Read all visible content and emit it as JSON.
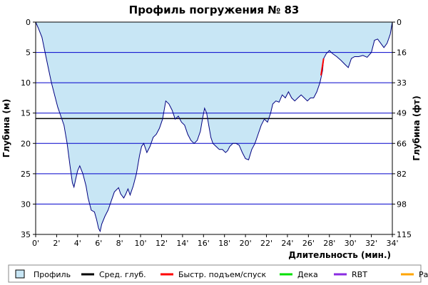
{
  "chart_data": {
    "type": "area",
    "title": "Профиль погружения № 83",
    "xlabel": "Длительность (мин.)",
    "ylabel_left": "Глубина (м)",
    "ylabel_right": "Глубина (фт)",
    "xlim": [
      0,
      34
    ],
    "ylim": [
      0,
      35
    ],
    "y_inverted": true,
    "x_ticks": [
      0,
      2,
      4,
      6,
      8,
      10,
      12,
      14,
      16,
      18,
      20,
      22,
      24,
      26,
      28,
      30,
      32,
      34
    ],
    "x_tick_labels": [
      "0'",
      "2'",
      "4'",
      "6'",
      "8'",
      "10'",
      "12'",
      "14'",
      "16'",
      "18'",
      "20'",
      "22'",
      "24'",
      "26'",
      "28'",
      "30'",
      "32'",
      "34'"
    ],
    "y_ticks": [
      0,
      5,
      10,
      15,
      20,
      25,
      30,
      35
    ],
    "y_tick_labels": [
      "0",
      "5",
      "10",
      "15",
      "20",
      "25",
      "30",
      "35"
    ],
    "y_right_ticks": [
      0,
      5,
      10,
      15,
      20,
      25,
      30,
      35
    ],
    "y_right_tick_labels": [
      "0",
      "16",
      "33",
      "49",
      "66",
      "82",
      "98",
      "115"
    ],
    "grid": "horizontal",
    "avg_depth": 15.9,
    "profile": [
      [
        0,
        0
      ],
      [
        0.25,
        1
      ],
      [
        0.6,
        2.5
      ],
      [
        0.9,
        5
      ],
      [
        1.2,
        7.5
      ],
      [
        1.5,
        10
      ],
      [
        1.8,
        12
      ],
      [
        2.1,
        14
      ],
      [
        2.4,
        15.5
      ],
      [
        2.7,
        17
      ],
      [
        3.0,
        20
      ],
      [
        3.3,
        24
      ],
      [
        3.5,
        26.5
      ],
      [
        3.65,
        27.2
      ],
      [
        3.8,
        26
      ],
      [
        4.0,
        24.5
      ],
      [
        4.2,
        23.7
      ],
      [
        4.5,
        25
      ],
      [
        4.8,
        27
      ],
      [
        5.0,
        29
      ],
      [
        5.3,
        31
      ],
      [
        5.6,
        31.3
      ],
      [
        5.8,
        32.5
      ],
      [
        6.0,
        34
      ],
      [
        6.15,
        34.5
      ],
      [
        6.3,
        33.3
      ],
      [
        6.6,
        32
      ],
      [
        6.9,
        31
      ],
      [
        7.2,
        29.5
      ],
      [
        7.5,
        28
      ],
      [
        7.9,
        27.3
      ],
      [
        8.1,
        28.3
      ],
      [
        8.4,
        29
      ],
      [
        8.6,
        28.3
      ],
      [
        8.8,
        27.5
      ],
      [
        9.0,
        28.5
      ],
      [
        9.3,
        27
      ],
      [
        9.6,
        25
      ],
      [
        9.9,
        22
      ],
      [
        10.1,
        20.5
      ],
      [
        10.3,
        20
      ],
      [
        10.6,
        21.5
      ],
      [
        10.9,
        20.5
      ],
      [
        11.2,
        19
      ],
      [
        11.5,
        18.5
      ],
      [
        11.8,
        17.5
      ],
      [
        12.1,
        16
      ],
      [
        12.4,
        13
      ],
      [
        12.7,
        13.5
      ],
      [
        13.0,
        14.5
      ],
      [
        13.3,
        16
      ],
      [
        13.6,
        15.5
      ],
      [
        13.9,
        16.5
      ],
      [
        14.2,
        17
      ],
      [
        14.5,
        18.5
      ],
      [
        14.8,
        19.5
      ],
      [
        15.1,
        20
      ],
      [
        15.4,
        19.5
      ],
      [
        15.7,
        18
      ],
      [
        15.9,
        16
      ],
      [
        16.1,
        14.2
      ],
      [
        16.3,
        15
      ],
      [
        16.5,
        17
      ],
      [
        16.7,
        19
      ],
      [
        16.9,
        20
      ],
      [
        17.2,
        20.5
      ],
      [
        17.5,
        21
      ],
      [
        17.8,
        21
      ],
      [
        18.1,
        21.5
      ],
      [
        18.3,
        21.2
      ],
      [
        18.5,
        20.5
      ],
      [
        18.8,
        20
      ],
      [
        19.1,
        20
      ],
      [
        19.4,
        20.3
      ],
      [
        19.7,
        21.5
      ],
      [
        20.0,
        22.5
      ],
      [
        20.3,
        22.7
      ],
      [
        20.6,
        21
      ],
      [
        20.9,
        20
      ],
      [
        21.2,
        18.5
      ],
      [
        21.5,
        17
      ],
      [
        21.8,
        16
      ],
      [
        22.1,
        16.5
      ],
      [
        22.4,
        15
      ],
      [
        22.6,
        13.5
      ],
      [
        22.9,
        13
      ],
      [
        23.2,
        13.2
      ],
      [
        23.5,
        12
      ],
      [
        23.8,
        12.5
      ],
      [
        24.1,
        11.5
      ],
      [
        24.4,
        12.5
      ],
      [
        24.7,
        13
      ],
      [
        25.0,
        12.5
      ],
      [
        25.3,
        12
      ],
      [
        25.6,
        12.5
      ],
      [
        25.9,
        13
      ],
      [
        26.2,
        12.5
      ],
      [
        26.5,
        12.5
      ],
      [
        26.8,
        11.5
      ],
      [
        27.1,
        10
      ],
      [
        27.35,
        8
      ],
      [
        27.45,
        6
      ],
      [
        27.7,
        5.2
      ],
      [
        28.0,
        4.7
      ],
      [
        28.3,
        5.2
      ],
      [
        28.7,
        5.7
      ],
      [
        29.1,
        6.3
      ],
      [
        29.5,
        7
      ],
      [
        29.8,
        7.5
      ],
      [
        30.1,
        6
      ],
      [
        30.4,
        5.7
      ],
      [
        30.8,
        5.7
      ],
      [
        31.2,
        5.5
      ],
      [
        31.6,
        5.8
      ],
      [
        32.0,
        5
      ],
      [
        32.3,
        3
      ],
      [
        32.6,
        2.8
      ],
      [
        32.9,
        3.5
      ],
      [
        33.2,
        4.2
      ],
      [
        33.5,
        3.5
      ],
      [
        33.8,
        2
      ],
      [
        34.0,
        0
      ]
    ],
    "fast_segment": [
      [
        27.2,
        8.8
      ],
      [
        27.45,
        6
      ]
    ],
    "legend": [
      {
        "label": "Профиль",
        "color": "#c8e6f5",
        "kind": "box"
      },
      {
        "label": "Сред. глуб.",
        "color": "#000000",
        "kind": "line"
      },
      {
        "label": "Быстр. подъем/спуск",
        "color": "#ff0000",
        "kind": "line"
      },
      {
        "label": "Дека",
        "color": "#00e000",
        "kind": "line"
      },
      {
        "label": "RBT",
        "color": "#8a2be2",
        "kind": "line"
      },
      {
        "label": "Раб.",
        "color": "#ffa500",
        "kind": "line"
      }
    ],
    "colors": {
      "fill": "#c8e6f5",
      "profile_line": "#000080",
      "grid": "#0000cc",
      "avg_line": "#000000",
      "fast": "#ff0000"
    }
  }
}
